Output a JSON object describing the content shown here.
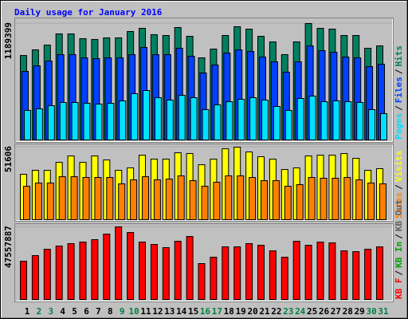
{
  "title": "Daily usage for January 2016",
  "legend_separator": "/",
  "chart_data": [
    {
      "type": "bar",
      "ylim": [
        0,
        1189399
      ],
      "yticks": [
        1189399
      ],
      "series": [
        {
          "name": "Hits",
          "color": "#008060",
          "values": [
            863000,
            920600,
            969400,
            1083500,
            1083500,
            1034600,
            1026500,
            1042800,
            1042800,
            1107900,
            1140500,
            1075300,
            1067200,
            1148700,
            1059000,
            839100,
            928700,
            1067200,
            1156800,
            1132400,
            1059000,
            1002000,
            871700,
            1002000,
            1189399,
            1140500,
            1132400,
            1067200,
            1067200,
            936800,
            961300
          ]
        },
        {
          "name": "Files",
          "color": "#0040ff",
          "values": [
            700600,
            757600,
            806500,
            871700,
            871700,
            839100,
            831000,
            839100,
            839100,
            871700,
            945000,
            871700,
            871700,
            936900,
            855400,
            684300,
            765800,
            888000,
            920600,
            904300,
            847200,
            798400,
            692500,
            798400,
            961300,
            912400,
            896100,
            847200,
            839100,
            749500,
            773900
          ]
        },
        {
          "name": "Pages",
          "color": "#00e0ff",
          "values": [
            301400,
            317700,
            350300,
            382900,
            382900,
            374700,
            366600,
            374700,
            399200,
            472500,
            505100,
            431800,
            407300,
            456200,
            431800,
            309600,
            358500,
            391000,
            415500,
            431800,
            407300,
            342200,
            301400,
            423600,
            448100,
            391000,
            399200,
            391000,
            382900,
            309600,
            268800
          ]
        }
      ]
    },
    {
      "type": "bar",
      "ylim": [
        0,
        51606
      ],
      "yticks": [
        51606
      ],
      "series": [
        {
          "name": "Visits",
          "color": "#ffff00",
          "values": [
            32300,
            35150,
            35150,
            40800,
            45350,
            40800,
            45350,
            42500,
            35150,
            36850,
            45900,
            43100,
            43100,
            47600,
            47050,
            39100,
            43100,
            50450,
            51606,
            48200,
            44800,
            43100,
            35700,
            36850,
            45350,
            45900,
            45900,
            47050,
            43650,
            35150,
            36300
          ]
        },
        {
          "name": "Sites",
          "color": "#ff8000",
          "values": [
            23800,
            26100,
            26100,
            30600,
            30600,
            30050,
            30050,
            30050,
            25500,
            28350,
            30600,
            28350,
            28900,
            31200,
            27800,
            23800,
            26650,
            31200,
            31200,
            30050,
            27800,
            27800,
            23800,
            24950,
            30050,
            29500,
            29500,
            30050,
            28350,
            26100,
            25500
          ]
        }
      ]
    },
    {
      "type": "bar",
      "ylim": [
        0,
        47557887
      ],
      "yticks": [
        47557887
      ],
      "categories": [
        "1",
        "2",
        "3",
        "4",
        "5",
        "6",
        "7",
        "8",
        "9",
        "10",
        "11",
        "12",
        "13",
        "14",
        "15",
        "16",
        "17",
        "18",
        "19",
        "20",
        "21",
        "22",
        "23",
        "24",
        "25",
        "26",
        "27",
        "28",
        "29",
        "30",
        "31"
      ],
      "category_colors": [
        "#000000",
        "#008040",
        "#008040",
        "#000000",
        "#000000",
        "#000000",
        "#000000",
        "#000000",
        "#008040",
        "#008040",
        "#000000",
        "#000000",
        "#000000",
        "#000000",
        "#000000",
        "#008040",
        "#008040",
        "#000000",
        "#000000",
        "#000000",
        "#000000",
        "#000000",
        "#008040",
        "#008040",
        "#000000",
        "#000000",
        "#000000",
        "#000000",
        "#000000",
        "#008040",
        "#008040"
      ],
      "series": [
        {
          "name": "KB F",
          "color": "#ff0000",
          "values": [
            25085000,
            28744000,
            32925000,
            35015000,
            36583000,
            37628000,
            39196000,
            42854000,
            47557887,
            43900000,
            37628000,
            36060000,
            33970000,
            38151000,
            41287000,
            23518000,
            27699000,
            34493000,
            34493000,
            36583000,
            35538000,
            31879000,
            27699000,
            38151000,
            35538000,
            37628000,
            37106000,
            31879000,
            31357000,
            32925000,
            34493000
          ]
        }
      ],
      "legend_extra": [
        {
          "name": "KB In",
          "color": "#00a000"
        },
        {
          "name": "KB Out",
          "color": "#606060"
        }
      ]
    }
  ]
}
